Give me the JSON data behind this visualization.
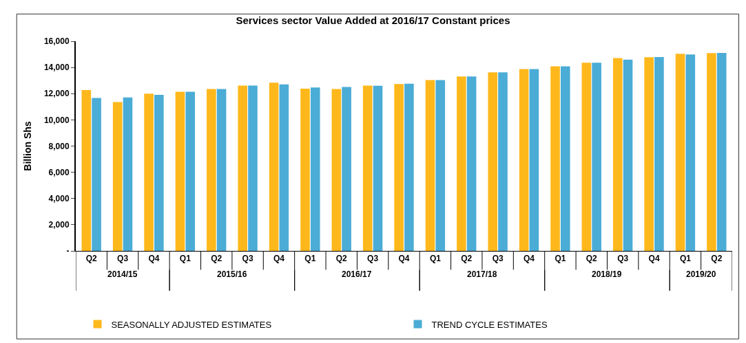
{
  "chart_data": {
    "type": "bar",
    "title": "Services sector Value Added at 2016/17 Constant prices",
    "ylabel": "Billion Shs",
    "categories": [
      [
        "2014/15",
        "Q2"
      ],
      [
        null,
        "Q3"
      ],
      [
        null,
        "Q4"
      ],
      [
        "2015/16",
        "Q1"
      ],
      [
        null,
        "Q2"
      ],
      [
        null,
        "Q3"
      ],
      [
        null,
        "Q4"
      ],
      [
        "2016/17",
        "Q1"
      ],
      [
        null,
        "Q2"
      ],
      [
        null,
        "Q3"
      ],
      [
        null,
        "Q4"
      ],
      [
        "2017/18",
        "Q1"
      ],
      [
        null,
        "Q2"
      ],
      [
        null,
        "Q3"
      ],
      [
        null,
        "Q4"
      ],
      [
        "2018/19",
        "Q1"
      ],
      [
        null,
        "Q2"
      ],
      [
        null,
        "Q3"
      ],
      [
        null,
        "Q4"
      ],
      [
        "2019/20",
        "Q1"
      ],
      [
        null,
        "Q2"
      ]
    ],
    "series": [
      {
        "name": "SEASONALLY ADJUSTED ESTIMATES",
        "color": "#ffb81c",
        "values": [
          12270,
          11360,
          12000,
          12150,
          12360,
          12620,
          12840,
          12380,
          12360,
          12620,
          12740,
          13030,
          13310,
          13620,
          13870,
          14090,
          14360,
          14710,
          14780,
          15040,
          15100
        ]
      },
      {
        "name": "TREND CYCLE ESTIMATES",
        "color": "#4bacd6",
        "values": [
          11670,
          11710,
          11910,
          12150,
          12360,
          12620,
          12710,
          12470,
          12510,
          12600,
          12760,
          13030,
          13310,
          13620,
          13870,
          14090,
          14360,
          14600,
          14800,
          14990,
          15110
        ]
      }
    ],
    "ylim": [
      0,
      16000
    ],
    "yticks": [
      {
        "value": 0,
        "label": "-"
      },
      {
        "value": 2000,
        "label": "2,000"
      },
      {
        "value": 4000,
        "label": "4,000"
      },
      {
        "value": 6000,
        "label": "6,000"
      },
      {
        "value": 8000,
        "label": "8,000"
      },
      {
        "value": 10000,
        "label": "10,000"
      },
      {
        "value": 12000,
        "label": "12,000"
      },
      {
        "value": 14000,
        "label": "14,000"
      },
      {
        "value": 16000,
        "label": "16,000"
      }
    ],
    "grid": false,
    "legend": "bottom"
  }
}
